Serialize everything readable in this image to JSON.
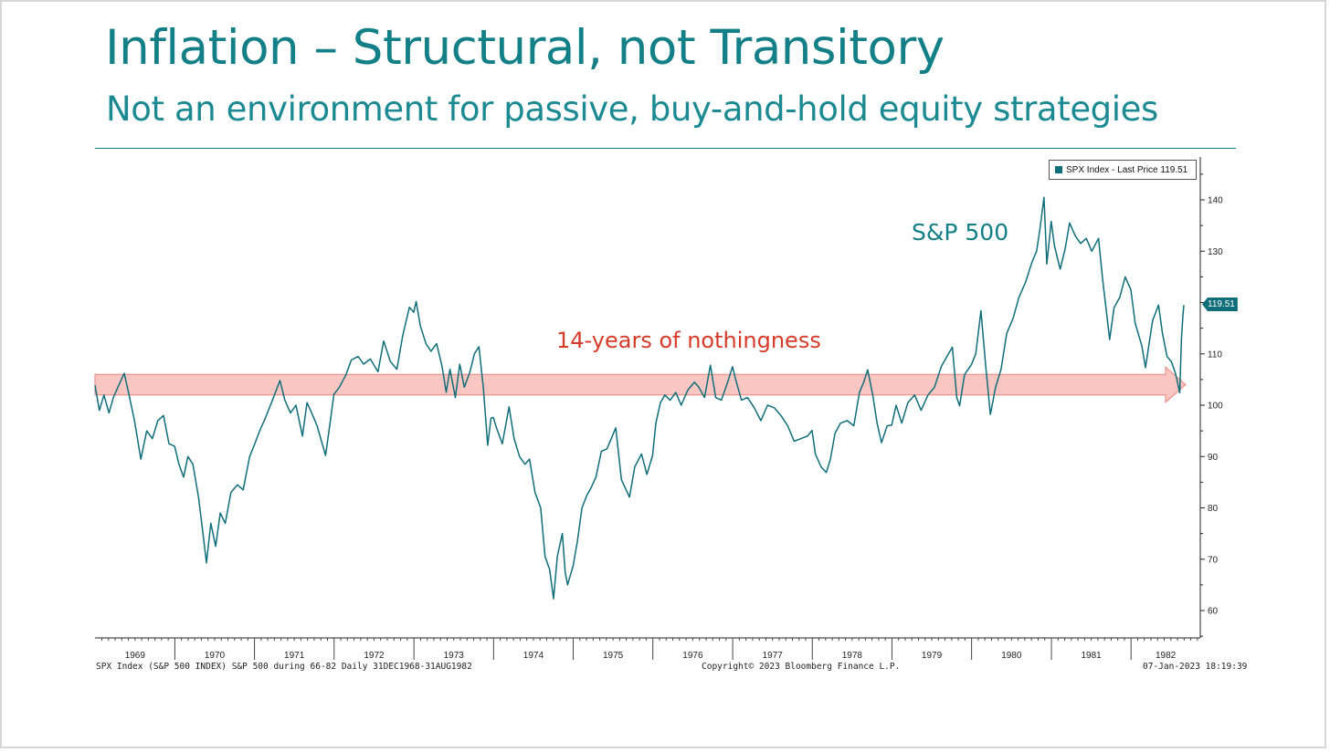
{
  "slide": {
    "title": "Inflation – Structural, not Transitory",
    "subtitle": "Not an environment for passive, buy-and-hold equity strategies"
  },
  "annotations": {
    "series_label": "S&P 500",
    "band_label": "14-years of nothingness"
  },
  "footer": {
    "left": "SPX Index (S&P 500 INDEX) S&P 500 during 66-82  Daily 31DEC1968-31AUG1982",
    "center": "Copyright© 2023 Bloomberg Finance L.P.",
    "right": "07-Jan-2023 18:19:39"
  },
  "colors": {
    "line": "#0f6e7a",
    "band_fill": "#f9c6c2",
    "band_stroke": "#e8847c",
    "accent": "#137f87"
  },
  "chart_data": {
    "type": "line",
    "legend": {
      "label": "SPX Index - Last Price 119.51",
      "placement": "top-right"
    },
    "last_value_tag": "119.51",
    "x_range": [
      "1968-12-31",
      "1982-08-31"
    ],
    "ylim": [
      55,
      150
    ],
    "y_ticks": [
      60,
      70,
      80,
      90,
      100,
      110,
      120,
      130,
      140
    ],
    "x_tick_labels": [
      "1969",
      "1970",
      "1971",
      "1972",
      "1973",
      "1974",
      "1975",
      "1976",
      "1977",
      "1978",
      "1979",
      "1980",
      "1981",
      "1982"
    ],
    "grid": false,
    "y_axis_side": "right",
    "band": {
      "y_low": 102,
      "y_high": 106,
      "from": "1968-12-31",
      "to": "1982-08-31",
      "shape": "arrow"
    },
    "series": [
      {
        "values": [
          [
            "1968-12-31",
            103.9
          ],
          [
            "1969-01-20",
            99.0
          ],
          [
            "1969-02-10",
            102.0
          ],
          [
            "1969-03-05",
            98.5
          ],
          [
            "1969-03-25",
            101.5
          ],
          [
            "1969-04-20",
            104.0
          ],
          [
            "1969-05-14",
            106.2
          ],
          [
            "1969-06-05",
            102.0
          ],
          [
            "1969-06-30",
            97.0
          ],
          [
            "1969-07-29",
            89.5
          ],
          [
            "1969-08-25",
            95.0
          ],
          [
            "1969-09-20",
            93.5
          ],
          [
            "1969-10-15",
            97.0
          ],
          [
            "1969-11-10",
            98.0
          ],
          [
            "1969-12-05",
            92.5
          ],
          [
            "1969-12-31",
            92.0
          ],
          [
            "1970-01-20",
            88.5
          ],
          [
            "1970-02-10",
            86.0
          ],
          [
            "1970-03-02",
            90.0
          ],
          [
            "1970-03-25",
            88.5
          ],
          [
            "1970-04-20",
            82.0
          ],
          [
            "1970-05-10",
            75.0
          ],
          [
            "1970-05-26",
            69.3
          ],
          [
            "1970-06-15",
            77.0
          ],
          [
            "1970-07-07",
            72.5
          ],
          [
            "1970-07-28",
            79.0
          ],
          [
            "1970-08-20",
            77.0
          ],
          [
            "1970-09-15",
            83.0
          ],
          [
            "1970-10-15",
            84.5
          ],
          [
            "1970-11-10",
            83.5
          ],
          [
            "1970-12-10",
            90.0
          ],
          [
            "1970-12-31",
            92.2
          ],
          [
            "1971-01-25",
            95.0
          ],
          [
            "1971-02-20",
            97.5
          ],
          [
            "1971-03-20",
            100.5
          ],
          [
            "1971-04-28",
            104.8
          ],
          [
            "1971-05-20",
            101.0
          ],
          [
            "1971-06-15",
            98.5
          ],
          [
            "1971-07-10",
            100.0
          ],
          [
            "1971-08-09",
            94.0
          ],
          [
            "1971-08-30",
            100.5
          ],
          [
            "1971-09-20",
            98.5
          ],
          [
            "1971-10-15",
            96.0
          ],
          [
            "1971-11-23",
            90.2
          ],
          [
            "1971-12-15",
            97.0
          ],
          [
            "1971-12-31",
            102.1
          ],
          [
            "1972-01-25",
            103.5
          ],
          [
            "1972-02-25",
            106.0
          ],
          [
            "1972-03-20",
            108.8
          ],
          [
            "1972-04-20",
            109.5
          ],
          [
            "1972-05-15",
            108.0
          ],
          [
            "1972-06-15",
            109.0
          ],
          [
            "1972-07-20",
            106.5
          ],
          [
            "1972-08-15",
            112.5
          ],
          [
            "1972-09-15",
            108.5
          ],
          [
            "1972-10-15",
            107.0
          ],
          [
            "1972-11-10",
            113.5
          ],
          [
            "1972-12-11",
            119.1
          ],
          [
            "1972-12-31",
            118.1
          ],
          [
            "1973-01-11",
            120.2
          ],
          [
            "1973-01-30",
            115.5
          ],
          [
            "1973-02-25",
            112.0
          ],
          [
            "1973-03-20",
            110.5
          ],
          [
            "1973-04-15",
            112.0
          ],
          [
            "1973-05-10",
            107.5
          ],
          [
            "1973-05-29",
            102.5
          ],
          [
            "1973-06-15",
            107.0
          ],
          [
            "1973-07-10",
            101.5
          ],
          [
            "1973-07-30",
            108.0
          ],
          [
            "1973-08-20",
            103.5
          ],
          [
            "1973-09-15",
            106.5
          ],
          [
            "1973-10-05",
            110.0
          ],
          [
            "1973-10-26",
            111.4
          ],
          [
            "1973-11-15",
            103.5
          ],
          [
            "1973-12-05",
            92.2
          ],
          [
            "1973-12-20",
            97.5
          ],
          [
            "1973-12-31",
            97.6
          ],
          [
            "1974-01-15",
            95.5
          ],
          [
            "1974-02-10",
            92.5
          ],
          [
            "1974-03-13",
            99.7
          ],
          [
            "1974-04-05",
            93.5
          ],
          [
            "1974-04-30",
            90.0
          ],
          [
            "1974-05-25",
            88.5
          ],
          [
            "1974-06-15",
            89.5
          ],
          [
            "1974-07-10",
            83.0
          ],
          [
            "1974-08-05",
            80.0
          ],
          [
            "1974-08-25",
            70.5
          ],
          [
            "1974-09-15",
            68.0
          ],
          [
            "1974-10-03",
            62.3
          ],
          [
            "1974-10-20",
            70.5
          ],
          [
            "1974-11-12",
            75.0
          ],
          [
            "1974-11-25",
            67.5
          ],
          [
            "1974-12-06",
            65.0
          ],
          [
            "1974-12-20",
            67.0
          ],
          [
            "1974-12-31",
            68.6
          ],
          [
            "1975-01-20",
            73.5
          ],
          [
            "1975-02-10",
            80.0
          ],
          [
            "1975-03-05",
            82.5
          ],
          [
            "1975-03-25",
            84.0
          ],
          [
            "1975-04-15",
            86.0
          ],
          [
            "1975-05-10",
            91.0
          ],
          [
            "1975-06-05",
            91.5
          ],
          [
            "1975-07-15",
            95.6
          ],
          [
            "1975-08-10",
            85.5
          ],
          [
            "1975-09-16",
            82.1
          ],
          [
            "1975-10-10",
            88.0
          ],
          [
            "1975-11-10",
            90.5
          ],
          [
            "1975-12-05",
            86.5
          ],
          [
            "1975-12-31",
            90.2
          ],
          [
            "1976-01-15",
            96.5
          ],
          [
            "1976-02-05",
            100.5
          ],
          [
            "1976-02-25",
            102.0
          ],
          [
            "1976-03-20",
            101.0
          ],
          [
            "1976-04-15",
            102.5
          ],
          [
            "1976-05-10",
            100.0
          ],
          [
            "1976-06-10",
            103.0
          ],
          [
            "1976-07-10",
            104.5
          ],
          [
            "1976-07-30",
            103.5
          ],
          [
            "1976-08-25",
            101.5
          ],
          [
            "1976-09-21",
            107.8
          ],
          [
            "1976-10-15",
            101.5
          ],
          [
            "1976-11-10",
            101.0
          ],
          [
            "1976-12-05",
            104.0
          ],
          [
            "1976-12-31",
            107.5
          ],
          [
            "1977-01-15",
            105.0
          ],
          [
            "1977-02-10",
            101.0
          ],
          [
            "1977-03-10",
            101.5
          ],
          [
            "1977-04-10",
            99.5
          ],
          [
            "1977-05-10",
            97.0
          ],
          [
            "1977-06-10",
            100.0
          ],
          [
            "1977-07-10",
            99.5
          ],
          [
            "1977-08-10",
            98.0
          ],
          [
            "1977-09-10",
            96.0
          ],
          [
            "1977-10-10",
            93.0
          ],
          [
            "1977-11-10",
            93.5
          ],
          [
            "1977-12-10",
            94.0
          ],
          [
            "1977-12-31",
            95.1
          ],
          [
            "1978-01-15",
            90.5
          ],
          [
            "1978-02-10",
            88.0
          ],
          [
            "1978-03-06",
            86.9
          ],
          [
            "1978-03-25",
            89.5
          ],
          [
            "1978-04-15",
            94.5
          ],
          [
            "1978-05-10",
            96.5
          ],
          [
            "1978-06-10",
            97.0
          ],
          [
            "1978-07-10",
            96.0
          ],
          [
            "1978-08-05",
            102.5
          ],
          [
            "1978-08-25",
            104.5
          ],
          [
            "1978-09-12",
            106.9
          ],
          [
            "1978-10-05",
            102.0
          ],
          [
            "1978-10-25",
            96.5
          ],
          [
            "1978-11-14",
            92.7
          ],
          [
            "1978-12-10",
            96.0
          ],
          [
            "1978-12-31",
            96.1
          ],
          [
            "1979-01-20",
            100.0
          ],
          [
            "1979-02-15",
            96.5
          ],
          [
            "1979-03-15",
            100.5
          ],
          [
            "1979-04-15",
            102.0
          ],
          [
            "1979-05-15",
            99.0
          ],
          [
            "1979-06-15",
            102.0
          ],
          [
            "1979-07-15",
            103.5
          ],
          [
            "1979-08-15",
            107.5
          ],
          [
            "1979-09-10",
            109.5
          ],
          [
            "1979-10-05",
            111.3
          ],
          [
            "1979-10-25",
            101.5
          ],
          [
            "1979-11-07",
            99.9
          ],
          [
            "1979-11-30",
            106.0
          ],
          [
            "1979-12-31",
            107.9
          ],
          [
            "1980-01-20",
            110.0
          ],
          [
            "1980-02-13",
            118.4
          ],
          [
            "1980-03-05",
            108.0
          ],
          [
            "1980-03-27",
            98.2
          ],
          [
            "1980-04-20",
            103.5
          ],
          [
            "1980-05-15",
            107.0
          ],
          [
            "1980-06-10",
            114.0
          ],
          [
            "1980-07-10",
            117.0
          ],
          [
            "1980-08-05",
            121.0
          ],
          [
            "1980-09-05",
            124.0
          ],
          [
            "1980-10-05",
            128.0
          ],
          [
            "1980-10-25",
            130.0
          ],
          [
            "1980-11-10",
            134.5
          ],
          [
            "1980-11-28",
            140.5
          ],
          [
            "1980-12-11",
            127.5
          ],
          [
            "1980-12-31",
            135.8
          ],
          [
            "1981-01-15",
            131.0
          ],
          [
            "1981-02-10",
            126.5
          ],
          [
            "1981-03-05",
            130.5
          ],
          [
            "1981-03-25",
            135.5
          ],
          [
            "1981-04-20",
            133.0
          ],
          [
            "1981-05-15",
            131.5
          ],
          [
            "1981-06-10",
            132.5
          ],
          [
            "1981-07-05",
            130.0
          ],
          [
            "1981-08-05",
            132.5
          ],
          [
            "1981-08-25",
            124.0
          ],
          [
            "1981-09-25",
            112.8
          ],
          [
            "1981-10-15",
            119.0
          ],
          [
            "1981-11-10",
            121.0
          ],
          [
            "1981-12-05",
            125.0
          ],
          [
            "1981-12-31",
            122.5
          ],
          [
            "1982-01-20",
            116.0
          ],
          [
            "1982-02-20",
            111.5
          ],
          [
            "1982-03-08",
            107.3
          ],
          [
            "1982-04-10",
            116.5
          ],
          [
            "1982-05-07",
            119.5
          ],
          [
            "1982-05-25",
            114.0
          ],
          [
            "1982-06-15",
            109.5
          ],
          [
            "1982-07-05",
            108.5
          ],
          [
            "1982-07-25",
            106.0
          ],
          [
            "1982-08-12",
            102.4
          ],
          [
            "1982-08-20",
            113.0
          ],
          [
            "1982-08-27",
            117.5
          ],
          [
            "1982-08-31",
            119.51
          ]
        ]
      }
    ]
  }
}
